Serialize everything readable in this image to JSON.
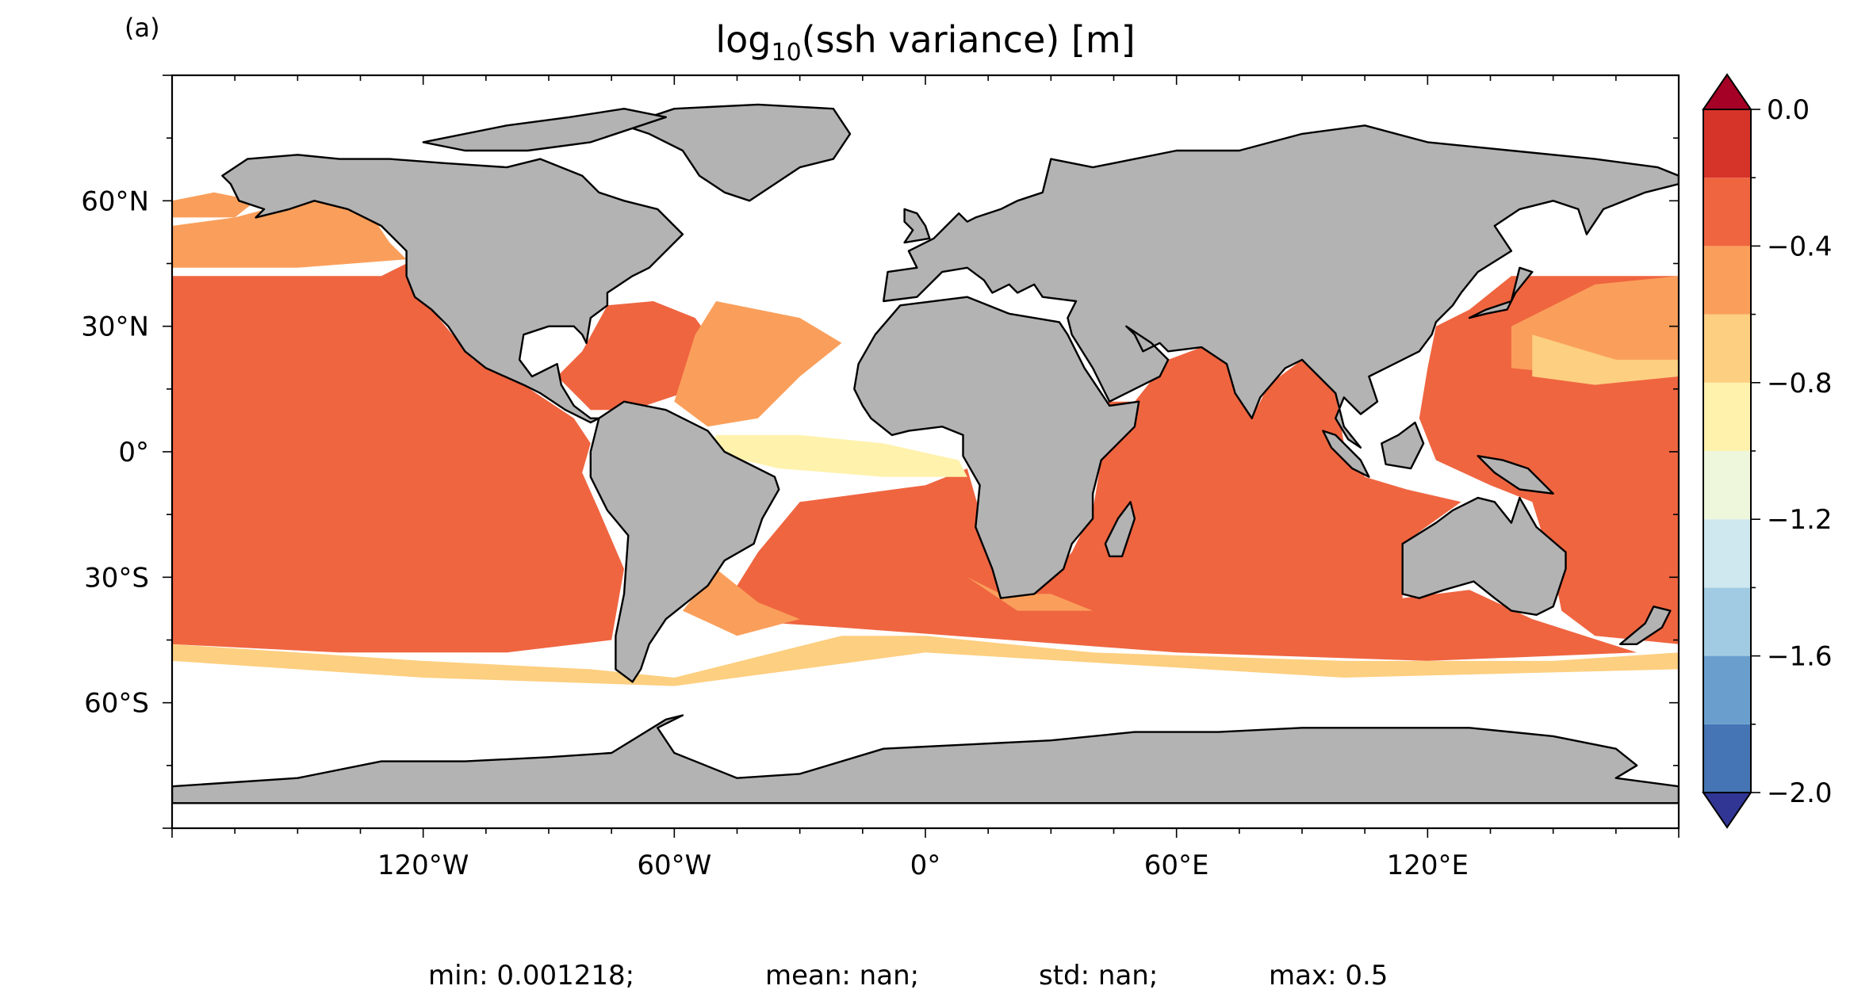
{
  "panel_label": "(a)",
  "title": {
    "prefix": "log",
    "subscript": "10",
    "suffix": "(ssh variance) [m]"
  },
  "map": {
    "projection": "PlateCarree",
    "extent": {
      "lon": [
        -180,
        180
      ],
      "lat": [
        -90,
        90
      ]
    },
    "land_color": "#b3b3b3",
    "coastline_color": "#000000",
    "lon_ticks": [
      {
        "value": -120,
        "label": "120°W"
      },
      {
        "value": -60,
        "label": "60°W"
      },
      {
        "value": 0,
        "label": "0°"
      },
      {
        "value": 60,
        "label": "60°E"
      },
      {
        "value": 120,
        "label": "120°E"
      }
    ],
    "lat_ticks": [
      {
        "value": 60,
        "label": "60°N"
      },
      {
        "value": 30,
        "label": "30°N"
      },
      {
        "value": 0,
        "label": "0°"
      },
      {
        "value": -30,
        "label": "30°S"
      },
      {
        "value": -60,
        "label": "60°S"
      }
    ]
  },
  "colorbar": {
    "levels": [
      -2.0,
      -1.8,
      -1.6,
      -1.4,
      -1.2,
      -1.0,
      -0.8,
      -0.6,
      -0.4,
      -0.2,
      0.0
    ],
    "colors": [
      "#4575b4",
      "#6a9fcd",
      "#a1cbe2",
      "#cfe8f0",
      "#eef6dc",
      "#fff2ad",
      "#fdcf80",
      "#fa9f5b",
      "#ef6540",
      "#d63329"
    ],
    "extend_low_color": "#313695",
    "extend_high_color": "#a50026",
    "tick_labels": [
      {
        "value": 0.0,
        "label": "0.0"
      },
      {
        "value": -0.4,
        "label": "−0.4"
      },
      {
        "value": -0.8,
        "label": "−0.8"
      },
      {
        "value": -1.2,
        "label": "−1.2"
      },
      {
        "value": -1.6,
        "label": "−1.6"
      },
      {
        "value": -2.0,
        "label": "−2.0"
      }
    ]
  },
  "stats": {
    "min": "min: 0.001218;",
    "mean": "mean: nan;",
    "std": "std: nan;",
    "max": "max: 0.5"
  }
}
